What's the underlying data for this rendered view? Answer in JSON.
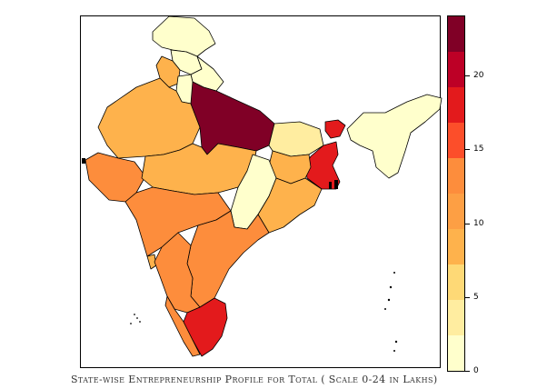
{
  "caption": "State-wise Entrepreneurship Profile for Total ( Scale 0-24 in Lakhs)",
  "legend": {
    "scale_min": 0,
    "scale_max": 24,
    "bin_width": 2.4,
    "colors": [
      "#ffffcc",
      "#ffeda0",
      "#fed976",
      "#feb24c",
      "#fd9f44",
      "#fd8d3c",
      "#fc4e2a",
      "#e31a1c",
      "#bd0026",
      "#800026"
    ],
    "ticks": [
      {
        "value": 0,
        "label": "0"
      },
      {
        "value": 5,
        "label": "5"
      },
      {
        "value": 10,
        "label": "10"
      },
      {
        "value": 15,
        "label": "15"
      },
      {
        "value": 20,
        "label": "20"
      }
    ]
  },
  "map_regions": {
    "jammu_kashmir": "#ffffcc",
    "himachal": "#ffffcc",
    "punjab": "#feb24c",
    "uttarakhand": "#ffffcc",
    "haryana": "#ffffcc",
    "rajasthan": "#feb24c",
    "uttar_pradesh": "#800026",
    "bihar": "#ffeda0",
    "northeast": "#ffffcc",
    "sikkim": "#e31a1c",
    "west_bengal": "#e31a1c",
    "jharkhand": "#feb24c",
    "gujarat": "#fd8d3c",
    "madhya_pradesh": "#feb24c",
    "chhattisgarh": "#ffffcc",
    "odisha": "#feb24c",
    "maharashtra": "#fd8d3c",
    "telangana_andhra": "#fd8d3c",
    "karnataka": "#fd8d3c",
    "goa": "#feb24c",
    "kerala": "#fd8d3c",
    "tamil_nadu": "#e31a1c"
  }
}
